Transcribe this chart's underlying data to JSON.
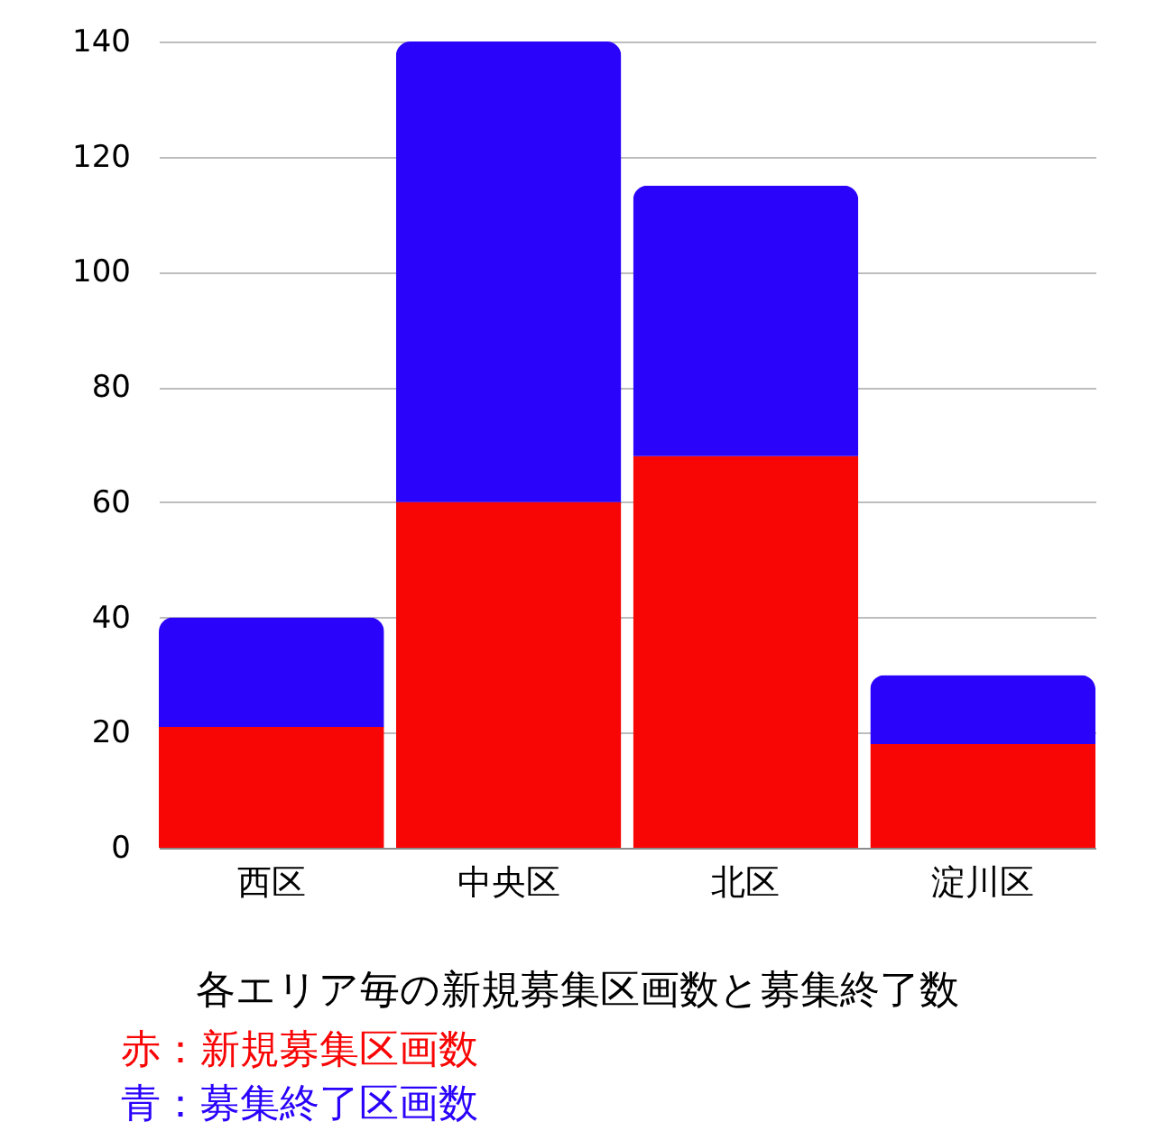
{
  "chart_data": {
    "type": "bar",
    "title": "各エリア毎の新規募集区画数と募集終了数",
    "categories": [
      "西区",
      "中央区",
      "北区",
      "淀川区"
    ],
    "series": [
      {
        "name": "赤：新規募集区画数",
        "color": "#f80505",
        "values": [
          21,
          60,
          68,
          18
        ]
      },
      {
        "name": "青：募集終了区画数",
        "color": "#2a03fb",
        "values": [
          19,
          80,
          47,
          12
        ]
      }
    ],
    "stacked": true,
    "ylim": [
      0,
      140
    ],
    "yticks": [
      0,
      20,
      40,
      60,
      80,
      100,
      120,
      140
    ],
    "grid": "y",
    "legend": "bottom left"
  }
}
